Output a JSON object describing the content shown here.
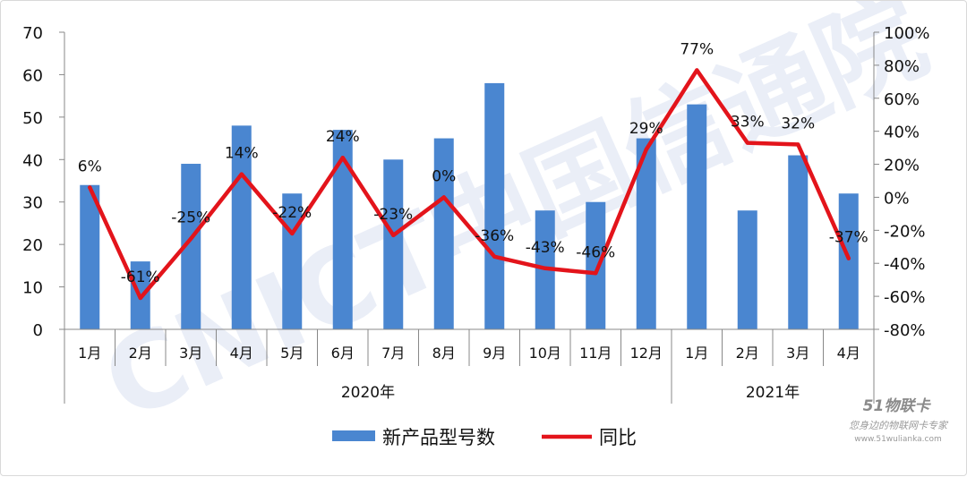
{
  "chart_data": {
    "type": "bar",
    "categories": [
      "1月",
      "2月",
      "3月",
      "4月",
      "5月",
      "6月",
      "7月",
      "8月",
      "9月",
      "10月",
      "11月",
      "12月",
      "1月",
      "2月",
      "3月",
      "4月"
    ],
    "groups": [
      {
        "label": "2020年",
        "start": 0,
        "end": 11
      },
      {
        "label": "2021年",
        "start": 12,
        "end": 15
      }
    ],
    "series": [
      {
        "name": "新产品型号数",
        "type": "bar",
        "axis": "left",
        "color": "#4a86d0",
        "values": [
          34,
          16,
          39,
          48,
          32,
          47,
          40,
          45,
          58,
          28,
          30,
          45,
          53,
          28,
          41,
          32
        ]
      },
      {
        "name": "同比",
        "type": "line",
        "axis": "right",
        "color": "#e3141b",
        "values": [
          6,
          -61,
          -25,
          14,
          -22,
          24,
          -23,
          0,
          -36,
          -43,
          -46,
          29,
          77,
          33,
          32,
          -37
        ],
        "labels": [
          "6%",
          "-61%",
          "-25%",
          "14%",
          "-22%",
          "24%",
          "-23%",
          "0%",
          "-36%",
          "-43%",
          "-46%",
          "29%",
          "77%",
          "33%",
          "32%",
          "-37%"
        ]
      }
    ],
    "y_left": {
      "min": 0,
      "max": 70,
      "step": 10,
      "tick_labels": [
        "0",
        "10",
        "20",
        "30",
        "40",
        "50",
        "60",
        "70"
      ]
    },
    "y_right": {
      "min": -80,
      "max": 100,
      "step": 20,
      "tick_labels": [
        "-80%",
        "-60%",
        "-40%",
        "-20%",
        "0%",
        "20%",
        "40%",
        "60%",
        "80%",
        "100%"
      ]
    },
    "legend_position": "bottom",
    "grid": false,
    "watermark": "CNICT中国信通院",
    "logo": {
      "brand": "51物联卡",
      "tagline": "您身边的物联网卡专家",
      "url": "www.51wulianka.com"
    }
  }
}
